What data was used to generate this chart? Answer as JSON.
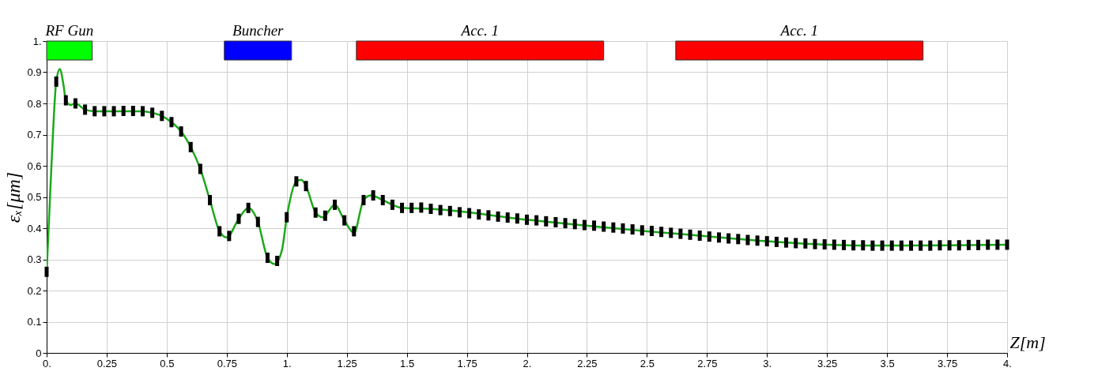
{
  "chart_data": {
    "type": "line",
    "xlabel": "Z[m]",
    "ylabel": "εₓ[μm]",
    "xlim": [
      0,
      4
    ],
    "ylim": [
      0,
      1
    ],
    "xticks": [
      {
        "value": 0,
        "label": "0."
      },
      0.25,
      0.5,
      0.75,
      {
        "value": 1,
        "label": "1."
      },
      1.25,
      1.5,
      1.75,
      {
        "value": 2,
        "label": "2."
      },
      2.25,
      2.5,
      2.75,
      {
        "value": 3,
        "label": "3."
      },
      3.25,
      3.5,
      3.75,
      {
        "value": 4,
        "label": "4."
      }
    ],
    "yticks": [
      0,
      0.1,
      0.2,
      0.3,
      0.4,
      0.5,
      0.6,
      0.7,
      0.8,
      0.9,
      {
        "value": 1,
        "label": "1."
      }
    ],
    "grid": true,
    "line_style": "solid",
    "series": [
      {
        "color": "#1aaa1a",
        "x": [
          0,
          0.02,
          0.04,
          0.055,
          0.07,
          0.08,
          0.1,
          0.12,
          0.16,
          0.2,
          0.4,
          0.44,
          0.48,
          0.52,
          0.56,
          0.6,
          0.64,
          0.68,
          0.72,
          0.75,
          0.8,
          0.84,
          0.88,
          0.92,
          0.95,
          0.98,
          1.0,
          1.04,
          1.06,
          1.08,
          1.12,
          1.15,
          1.2,
          1.24,
          1.28,
          1.32,
          1.35,
          1.4,
          1.44,
          1.48,
          1.6,
          2.0,
          2.5,
          2.75,
          3.0,
          3.25,
          3.5,
          3.75,
          4.0
        ],
        "values": [
          0.26,
          0.6,
          0.87,
          0.91,
          0.86,
          0.81,
          0.795,
          0.8,
          0.78,
          0.775,
          0.775,
          0.77,
          0.76,
          0.74,
          0.71,
          0.66,
          0.59,
          0.49,
          0.39,
          0.37,
          0.43,
          0.465,
          0.42,
          0.305,
          0.285,
          0.33,
          0.435,
          0.55,
          0.555,
          0.535,
          0.45,
          0.435,
          0.475,
          0.425,
          0.385,
          0.49,
          0.505,
          0.49,
          0.475,
          0.465,
          0.462,
          0.427,
          0.39,
          0.374,
          0.358,
          0.347,
          0.344,
          0.345,
          0.347
        ]
      },
      {
        "type": "scatter",
        "color": "#000000",
        "marker": "square",
        "x": [
          0,
          0.04,
          0.08,
          0.12,
          0.16,
          0.2,
          0.24,
          0.28,
          0.32,
          0.36,
          0.4,
          0.44,
          0.48,
          0.52,
          0.56,
          0.6,
          0.64,
          0.68,
          0.72,
          0.76,
          0.8,
          0.84,
          0.88,
          0.92,
          0.96,
          1.0,
          1.04,
          1.08,
          1.12,
          1.16,
          1.2,
          1.24,
          1.28,
          1.32,
          1.36,
          1.4,
          1.44,
          1.48,
          1.52,
          1.56,
          1.6,
          1.64,
          1.68,
          1.72,
          1.76,
          1.8,
          1.84,
          1.88,
          1.92,
          1.96,
          2.0,
          2.04,
          2.08,
          2.12,
          2.16,
          2.2,
          2.24,
          2.28,
          2.32,
          2.36,
          2.4,
          2.44,
          2.48,
          2.52,
          2.56,
          2.6,
          2.64,
          2.68,
          2.72,
          2.76,
          2.8,
          2.84,
          2.88,
          2.92,
          2.96,
          3.0,
          3.04,
          3.08,
          3.12,
          3.16,
          3.2,
          3.24,
          3.28,
          3.32,
          3.36,
          3.4,
          3.44,
          3.48,
          3.52,
          3.56,
          3.6,
          3.64,
          3.68,
          3.72,
          3.76,
          3.8,
          3.84,
          3.88,
          3.92,
          3.96,
          4.0
        ],
        "values": [
          0.26,
          0.87,
          0.81,
          0.8,
          0.78,
          0.775,
          0.775,
          0.775,
          0.776,
          0.776,
          0.775,
          0.77,
          0.76,
          0.74,
          0.71,
          0.66,
          0.59,
          0.49,
          0.39,
          0.375,
          0.43,
          0.465,
          0.42,
          0.305,
          0.295,
          0.435,
          0.55,
          0.535,
          0.45,
          0.44,
          0.475,
          0.425,
          0.39,
          0.49,
          0.505,
          0.49,
          0.475,
          0.465,
          0.465,
          0.466,
          0.462,
          0.458,
          0.455,
          0.451,
          0.448,
          0.444,
          0.441,
          0.437,
          0.434,
          0.431,
          0.427,
          0.425,
          0.422,
          0.419,
          0.416,
          0.413,
          0.41,
          0.408,
          0.405,
          0.402,
          0.399,
          0.396,
          0.393,
          0.391,
          0.388,
          0.385,
          0.382,
          0.379,
          0.376,
          0.373,
          0.37,
          0.367,
          0.365,
          0.362,
          0.36,
          0.358,
          0.356,
          0.354,
          0.352,
          0.351,
          0.349,
          0.348,
          0.347,
          0.346,
          0.345,
          0.345,
          0.344,
          0.344,
          0.344,
          0.344,
          0.344,
          0.344,
          0.344,
          0.345,
          0.345,
          0.345,
          0.346,
          0.346,
          0.347,
          0.347,
          0.347
        ]
      }
    ],
    "bands": [
      {
        "axis": "x",
        "from": 0,
        "to": 0.19,
        "label": "RF Gun",
        "color": "#00ff00"
      },
      {
        "axis": "x",
        "from": 0.74,
        "to": 1.02,
        "label": "Buncher",
        "color": "#0000ff"
      },
      {
        "axis": "x",
        "from": 1.29,
        "to": 2.32,
        "label": "Acc. 1",
        "color": "#ff0000"
      },
      {
        "axis": "x",
        "from": 2.62,
        "to": 3.65,
        "label": "Acc. 1",
        "color": "#ff0000"
      }
    ]
  }
}
